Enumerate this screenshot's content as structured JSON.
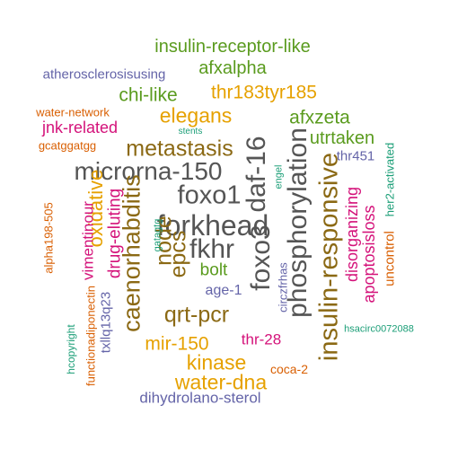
{
  "palette": {
    "gray": "#555555",
    "olive": "#8b6914",
    "green": "#5a9b1e",
    "purple": "#6464a8",
    "pink": "#d4127a",
    "orange": "#d95f02",
    "teal": "#1b9e77",
    "gold": "#e6a100"
  },
  "words": [
    {
      "text": "forkhead",
      "color": "gray"
    },
    {
      "text": "microrna-150",
      "color": "gray"
    },
    {
      "text": "foxo1",
      "color": "gray"
    },
    {
      "text": "fkhr",
      "color": "gray"
    },
    {
      "text": "daf-16",
      "color": "gray"
    },
    {
      "text": "foxo3",
      "color": "gray"
    },
    {
      "text": "phosphorylation",
      "color": "gray"
    },
    {
      "text": "insulin-responsive",
      "color": "olive"
    },
    {
      "text": "caenorhabditis",
      "color": "olive"
    },
    {
      "text": "metastasis",
      "color": "olive"
    },
    {
      "text": "qrt-pcr",
      "color": "olive"
    },
    {
      "text": "node",
      "color": "olive"
    },
    {
      "text": "epcs",
      "color": "olive"
    },
    {
      "text": "elegans",
      "color": "gold"
    },
    {
      "text": "thr183tyr185",
      "color": "gold"
    },
    {
      "text": "mir-150",
      "color": "gold"
    },
    {
      "text": "kinase",
      "color": "gold"
    },
    {
      "text": "water-dna",
      "color": "gold"
    },
    {
      "text": "oxidative",
      "color": "gold"
    },
    {
      "text": "insulin-receptor-like",
      "color": "green"
    },
    {
      "text": "afxalpha",
      "color": "green"
    },
    {
      "text": "chi-like",
      "color": "green"
    },
    {
      "text": "afxzeta",
      "color": "green"
    },
    {
      "text": "utrtaken",
      "color": "green"
    },
    {
      "text": "bolt",
      "color": "green"
    },
    {
      "text": "atherosclerosisusing",
      "color": "purple"
    },
    {
      "text": "dihydrolano-sterol",
      "color": "purple"
    },
    {
      "text": "age-1",
      "color": "purple"
    },
    {
      "text": "thr451",
      "color": "purple"
    },
    {
      "text": "txllq13q23",
      "color": "purple"
    },
    {
      "text": "circzfrhas",
      "color": "purple"
    },
    {
      "text": "jnk-related",
      "color": "pink"
    },
    {
      "text": "drug-eluting",
      "color": "pink"
    },
    {
      "text": "vimentinour",
      "color": "pink"
    },
    {
      "text": "disorganizing",
      "color": "pink"
    },
    {
      "text": "apoptosisloss",
      "color": "pink"
    },
    {
      "text": "thr-28",
      "color": "pink"
    },
    {
      "text": "water-network",
      "color": "orange"
    },
    {
      "text": "gcatggatgg",
      "color": "orange"
    },
    {
      "text": "functionadiponectin",
      "color": "orange"
    },
    {
      "text": "alpha198-505",
      "color": "orange"
    },
    {
      "text": "coca-2",
      "color": "orange"
    },
    {
      "text": "uncontrol",
      "color": "orange"
    },
    {
      "text": "stents",
      "color": "teal"
    },
    {
      "text": "engel",
      "color": "teal"
    },
    {
      "text": "gatagtg",
      "color": "teal"
    },
    {
      "text": "hcopyright",
      "color": "teal"
    },
    {
      "text": "her2-activated",
      "color": "teal"
    },
    {
      "text": "hsacirc0072088",
      "color": "teal"
    }
  ]
}
